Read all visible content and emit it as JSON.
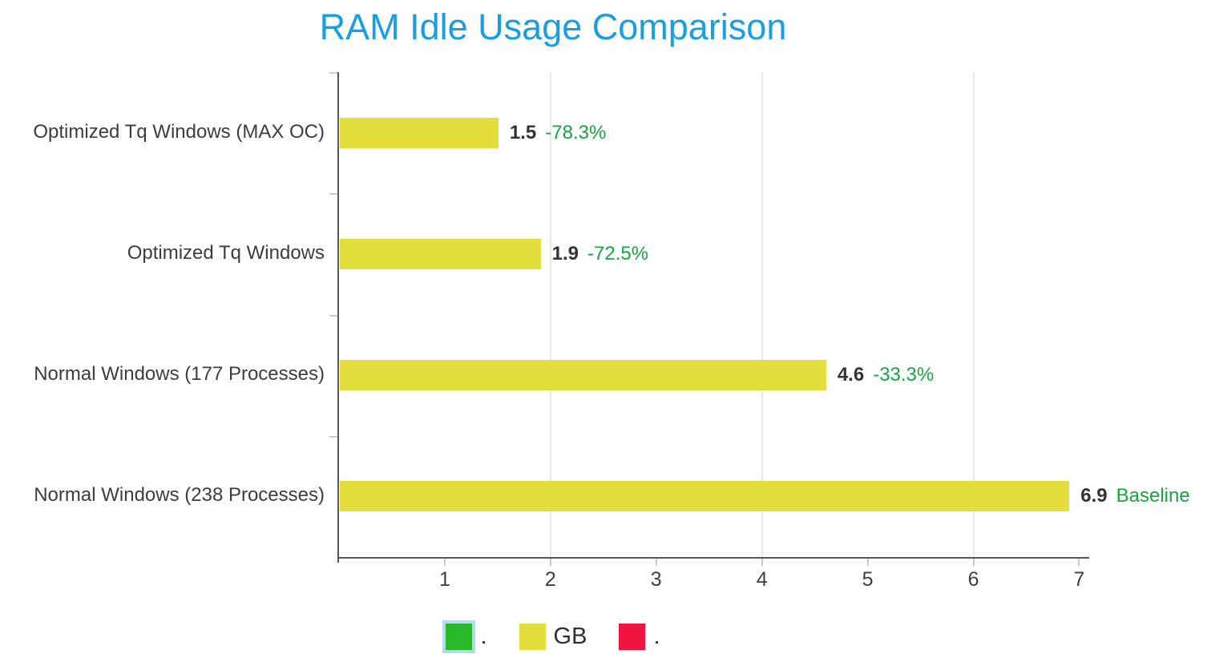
{
  "title": {
    "text": "RAM Idle Usage Comparison",
    "color": "#199fe0"
  },
  "chart_data": {
    "type": "bar",
    "orientation": "horizontal",
    "title": "RAM Idle Usage Comparison",
    "xlabel": "",
    "ylabel": "",
    "unit": "GB",
    "categories": [
      "Optimized Tq Windows (MAX OC)",
      "Optimized Tq Windows",
      "Normal Windows (177 Processes)",
      "Normal Windows (238 Processes)"
    ],
    "values": [
      1.5,
      1.9,
      4.6,
      6.9
    ],
    "value_labels": [
      "1.5",
      "1.9",
      "4.6",
      "6.9"
    ],
    "annotations": [
      "-78.3%",
      "-72.5%",
      "-33.3%",
      "Baseline"
    ],
    "xlim": [
      0,
      7.08
    ],
    "xticks": [
      1,
      2,
      3,
      4,
      5,
      6,
      7
    ],
    "gridline_values": [
      2,
      4,
      6
    ],
    "grid": "vertical-only",
    "legend_position": "bottom",
    "bar_color": "#e4de3d",
    "value_color": "#333333",
    "annotation_color": "#16a53e"
  },
  "legend": {
    "items": [
      {
        "label": ".",
        "color": "#29b829",
        "selected": true
      },
      {
        "label": "GB",
        "color": "#e4de3d",
        "selected": false
      },
      {
        "label": ".",
        "color": "#f01440",
        "selected": false
      }
    ]
  }
}
